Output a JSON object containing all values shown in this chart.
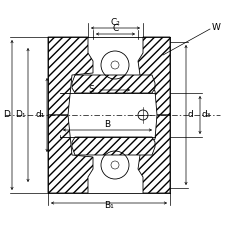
{
  "bg_color": "#ffffff",
  "line_color": "#000000",
  "labels": {
    "C2": "C₂",
    "C": "C",
    "W": "W",
    "S": "S",
    "D": "D",
    "D1": "D₁",
    "d1": "d₁",
    "B": "B",
    "B1": "B₁",
    "d": "d",
    "d3": "d₃"
  },
  "figsize": [
    2.3,
    2.29
  ],
  "dpi": 100
}
